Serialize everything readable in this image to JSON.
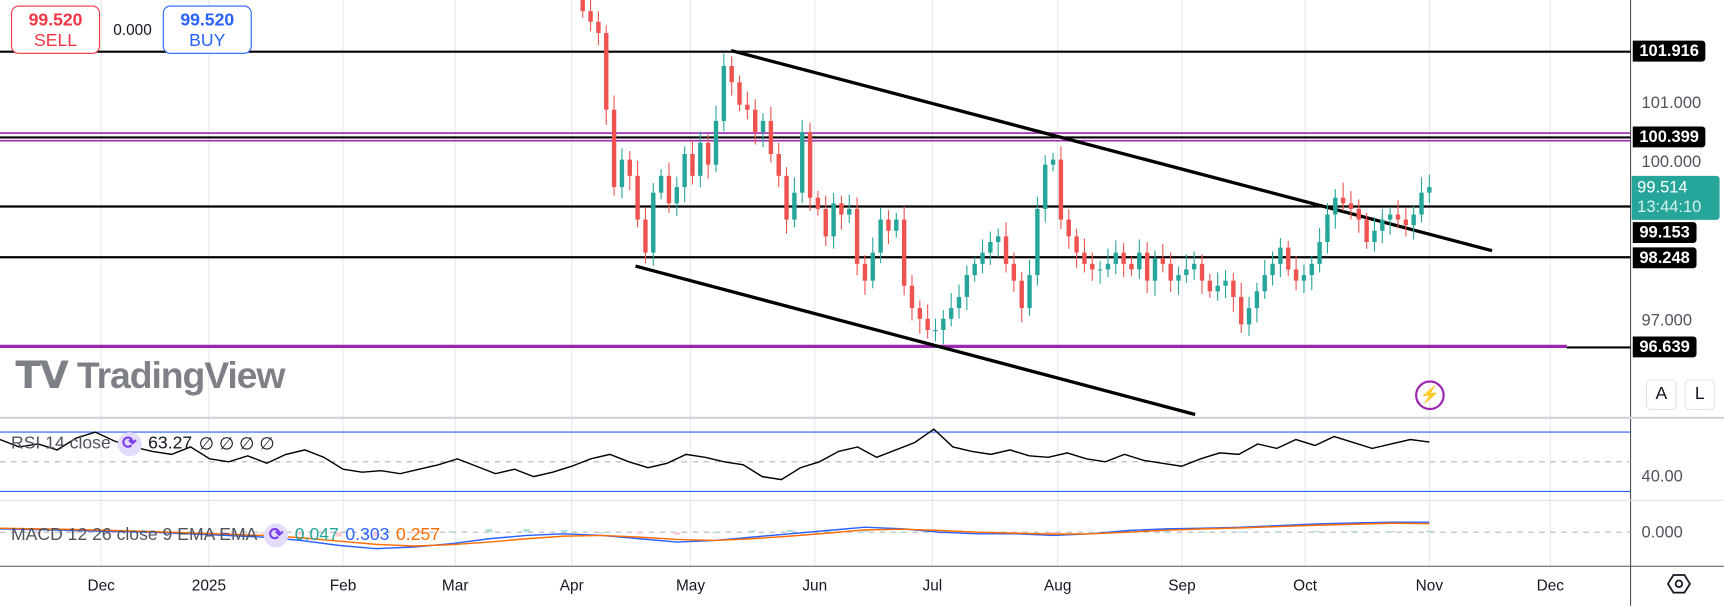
{
  "trade": {
    "sell_price": "99.520",
    "sell_label": "SELL",
    "spread": "0.000",
    "buy_price": "99.520",
    "buy_label": "BUY"
  },
  "price_axis": {
    "ticks": [
      "101.000",
      "100.000",
      "97.000"
    ],
    "levels": [
      "101.916",
      "100.399",
      "99.153",
      "98.248",
      "96.639"
    ],
    "current_price": "99.514",
    "countdown": "13:44:10",
    "auto_label": "A",
    "log_label": "L"
  },
  "time_axis": [
    "Dec",
    "2025",
    "Feb",
    "Mar",
    "Apr",
    "May",
    "Jun",
    "Jul",
    "Aug",
    "Sep",
    "Oct",
    "Nov",
    "Dec"
  ],
  "rsi": {
    "title": "RSI 14 close",
    "value": "63.27",
    "na_values": "∅ ∅ ∅ ∅",
    "axis_label": "40.00"
  },
  "macd": {
    "title": "MACD 12 26 close 9 EMA EMA",
    "hist": "0.047",
    "macd": "0.303",
    "signal": "0.257",
    "axis_label": "0.000"
  },
  "watermark": "TradingView",
  "colors": {
    "up": "#26a69a",
    "down": "#ef5350",
    "sell": "#f23645",
    "buy": "#2962ff",
    "level": "#9c27b0",
    "macd": "#2962ff",
    "signal": "#ff6d00"
  },
  "chart_data": {
    "type": "candlestick",
    "price_range": [
      96.0,
      102.9
    ],
    "closes": [
      102.64,
      102.45,
      102.25,
      100.88,
      99.5,
      99.99,
      99.7,
      98.92,
      98.33,
      99.4,
      99.7,
      99.21,
      99.5,
      100.09,
      99.7,
      100.29,
      99.9,
      100.68,
      101.66,
      101.37,
      100.97,
      100.88,
      100.48,
      100.68,
      100.09,
      99.7,
      98.92,
      99.4,
      100.48,
      99.31,
      99.11,
      98.62,
      99.21,
      99.01,
      99.11,
      98.13,
      97.83,
      98.33,
      98.92,
      98.72,
      98.92,
      97.74,
      97.34,
      97.15,
      96.95,
      96.95,
      97.15,
      97.34,
      97.54,
      97.93,
      98.13,
      98.33,
      98.52,
      98.62,
      98.13,
      97.83,
      97.34,
      97.93,
      99.11,
      99.9,
      99.99,
      98.92,
      98.62,
      98.33,
      98.13,
      98.03,
      98.03,
      98.13,
      98.33,
      98.13,
      98.03,
      98.33,
      97.83,
      98.23,
      98.13,
      97.83,
      97.93,
      98.03,
      98.13,
      97.83,
      97.64,
      97.74,
      97.83,
      97.54,
      97.05,
      97.34,
      97.64,
      97.93,
      98.13,
      98.42,
      98.03,
      97.83,
      97.93,
      98.13,
      98.52,
      99.01,
      99.31,
      99.21,
      99.11,
      98.92,
      98.52,
      98.72,
      98.92,
      99.01,
      98.92,
      98.82,
      99.01,
      99.4,
      99.5
    ],
    "rsi_series": [
      65,
      60,
      62,
      58,
      66,
      70,
      64,
      60,
      57,
      55,
      60,
      52,
      50,
      54,
      49,
      55,
      58,
      53,
      45,
      43,
      44,
      42,
      45,
      48,
      52,
      47,
      42,
      45,
      40,
      43,
      47,
      52,
      55,
      50,
      46,
      49,
      55,
      53,
      50,
      48,
      40,
      38,
      46,
      50,
      57,
      60,
      53,
      58,
      63,
      72,
      60,
      57,
      55,
      58,
      54,
      53,
      56,
      52,
      50,
      55,
      51,
      49,
      47,
      52,
      56,
      55,
      62,
      59,
      65,
      61,
      67,
      63,
      59,
      62,
      65,
      63.27
    ],
    "macd_series": [
      0.1,
      0.08,
      0.05,
      0.02,
      0.0,
      -0.05,
      -0.1,
      -0.15,
      -0.25,
      -0.4,
      -0.5,
      -0.45,
      -0.35,
      -0.2,
      -0.1,
      -0.05,
      -0.1,
      -0.2,
      -0.3,
      -0.25,
      -0.15,
      -0.05,
      0.05,
      0.15,
      0.1,
      0.0,
      -0.05,
      -0.05,
      -0.1,
      -0.05,
      0.05,
      0.1,
      0.12,
      0.15,
      0.2,
      0.25,
      0.28,
      0.3,
      0.303
    ],
    "signal_series": [
      0.12,
      0.1,
      0.08,
      0.05,
      0.02,
      -0.02,
      -0.06,
      -0.1,
      -0.17,
      -0.27,
      -0.37,
      -0.42,
      -0.38,
      -0.3,
      -0.2,
      -0.12,
      -0.1,
      -0.15,
      -0.22,
      -0.25,
      -0.2,
      -0.12,
      -0.03,
      0.07,
      0.09,
      0.05,
      0.0,
      -0.03,
      -0.06,
      -0.05,
      0.0,
      0.06,
      0.1,
      0.13,
      0.17,
      0.21,
      0.24,
      0.27,
      0.257
    ]
  }
}
